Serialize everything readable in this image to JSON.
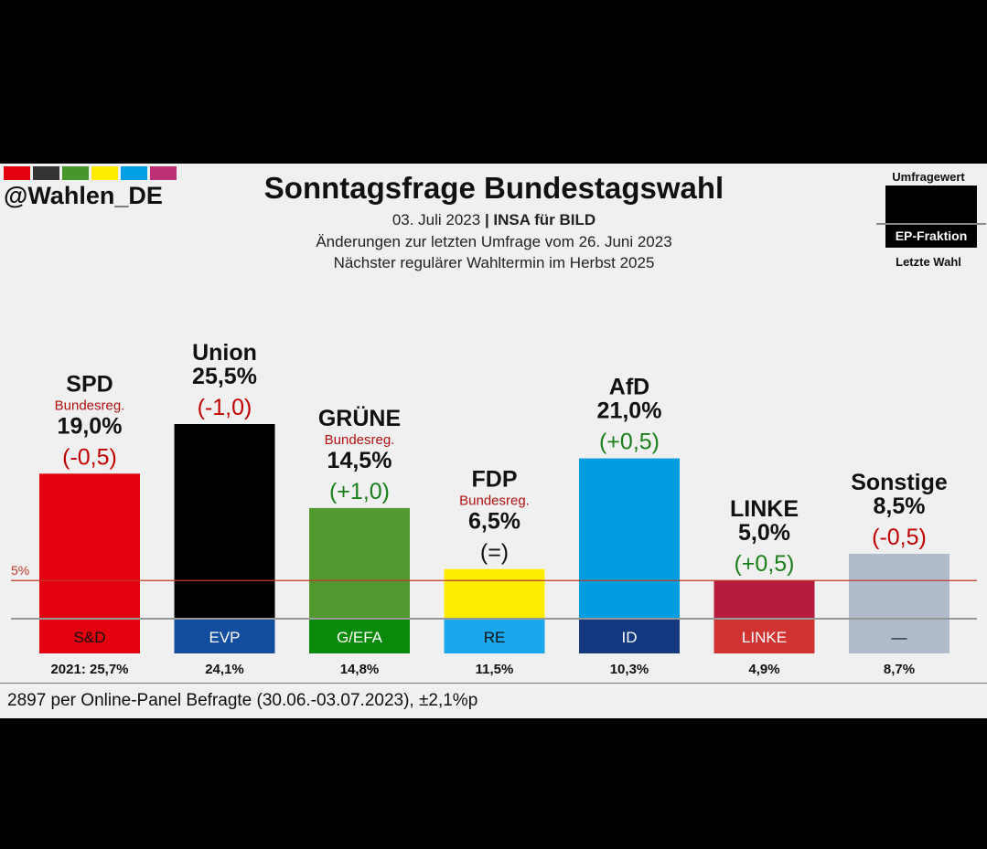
{
  "brand": {
    "handle": "@Wahlen_DE",
    "colors": [
      "#e3000f",
      "#333333",
      "#46962b",
      "#ffed00",
      "#00a0e2",
      "#be3075"
    ]
  },
  "header": {
    "title": "Sonntagsfrage Bundestagswahl",
    "date": "03. Juli 2023",
    "separator": " | ",
    "institute": "INSA für BILD",
    "changes_note": "Änderungen zur letzten Umfrage vom 26. Juni 2023",
    "next_election": "Nächster regulärer Wahltermin im Herbst 2025"
  },
  "legend": {
    "top_label": "Umfragewert",
    "middle_label": "EP-Fraktion",
    "bottom_label": "Letzte Wahl"
  },
  "footer": {
    "sample_note": "2897 per Online-Panel Befragte (30.06.-03.07.2023), ±2,1%p"
  },
  "chart_data": {
    "type": "bar",
    "categories": [
      "SPD",
      "Union",
      "GRÜNE",
      "FDP",
      "AfD",
      "LINKE",
      "Sonstige"
    ],
    "values": [
      19.0,
      25.5,
      14.5,
      6.5,
      21.0,
      5.0,
      8.5
    ],
    "value_labels": [
      "19,0%",
      "25,5%",
      "14,5%",
      "6,5%",
      "21,0%",
      "5,0%",
      "8,5%"
    ],
    "change_labels": [
      "(-0,5)",
      "(-1,0)",
      "(+1,0)",
      "(=)",
      "(+0,5)",
      "(+0,5)",
      "(-0,5)"
    ],
    "change_colors": [
      "#c00000",
      "#c00000",
      "#1a7f1a",
      "#111111",
      "#1a7f1a",
      "#1a7f1a",
      "#c00000"
    ],
    "government_labels": [
      "Bundesreg.",
      "",
      "Bundesreg.",
      "Bundesreg.",
      "",
      "",
      ""
    ],
    "bar_colors": [
      "#e3000f",
      "#000000",
      "#529a30",
      "#ffed00",
      "#009ee0",
      "#b71c3f",
      "#b0bccc"
    ],
    "ep_groups": [
      "S&D",
      "EVP",
      "G/EFA",
      "RE",
      "ID",
      "LINKE",
      "—"
    ],
    "ep_colors": [
      "#e3000f",
      "#124d9e",
      "#0a8a0a",
      "#1aa7ec",
      "#14387f",
      "#d13232",
      "#b0bccc"
    ],
    "ep_text_colors": [
      "#111111",
      "#ffffff",
      "#ffffff",
      "#111111",
      "#ffffff",
      "#ffffff",
      "#111111"
    ],
    "last_election": [
      25.7,
      24.1,
      14.8,
      11.5,
      10.3,
      4.9,
      8.7
    ],
    "last_election_labels": [
      "2021: 25,7%",
      "24,1%",
      "14,8%",
      "11,5%",
      "10,3%",
      "4,9%",
      "8,7%"
    ],
    "threshold": 5,
    "threshold_label": "5%",
    "threshold_color": "#c0392b",
    "ylim": [
      0,
      25.5
    ]
  }
}
